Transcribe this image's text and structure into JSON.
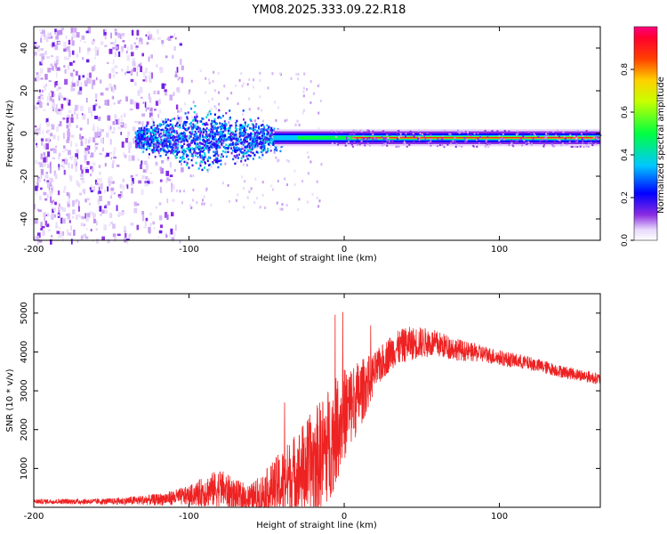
{
  "title": "YM08.2025.333.09.22.R18",
  "colors": {
    "snr_line": "#ee2222",
    "axis": "#000000",
    "background": "#ffffff"
  },
  "chart_data": [
    {
      "type": "heatmap",
      "name": "spectrogram",
      "xlabel": "Height of straight line (km)",
      "ylabel": "Frequency (Hz)",
      "xlim": [
        -200,
        165
      ],
      "ylim": [
        -50,
        50
      ],
      "xticks": [
        -200,
        -100,
        0,
        100
      ],
      "yticks": [
        -40,
        -20,
        0,
        20,
        40
      ],
      "colorbar": {
        "label": "Normalized spectral amplitude",
        "range": [
          0,
          1
        ],
        "ticks": [
          0.0,
          0.2,
          0.4,
          0.6,
          0.8
        ]
      },
      "regions": [
        {
          "description": "noise",
          "x_range": [
            -200,
            -105
          ],
          "f_range": [
            -50,
            50
          ],
          "amplitude": 0.1
        },
        {
          "description": "onset",
          "x_range": [
            -135,
            -40
          ],
          "f_range": [
            -12,
            8
          ],
          "amplitude": 0.3
        },
        {
          "description": "tone",
          "x_range": [
            -40,
            165
          ],
          "f_center": -2,
          "amplitude": 0.95
        }
      ]
    },
    {
      "type": "line",
      "name": "snr",
      "xlabel": "Height of straight line (km)",
      "ylabel": "SNR (10 * v/v)",
      "xlim": [
        -200,
        165
      ],
      "ylim": [
        0,
        5500
      ],
      "xticks": [
        -200,
        -100,
        0,
        100
      ],
      "yticks": [
        1000,
        2000,
        3000,
        4000,
        5000
      ],
      "envelope": {
        "x": [
          -200,
          -150,
          -120,
          -100,
          -90,
          -80,
          -70,
          -60,
          -50,
          -40,
          -30,
          -20,
          -10,
          0,
          10,
          20,
          30,
          40,
          50,
          60,
          70,
          80,
          90,
          100,
          120,
          140,
          165
        ],
        "base": [
          150,
          150,
          200,
          300,
          400,
          500,
          300,
          200,
          400,
          600,
          900,
          1100,
          1600,
          2400,
          2900,
          3500,
          4000,
          4200,
          4250,
          4200,
          4100,
          4000,
          3950,
          3850,
          3700,
          3500,
          3300
        ],
        "spread": [
          60,
          80,
          150,
          250,
          400,
          500,
          400,
          400,
          600,
          900,
          1100,
          1400,
          1500,
          1200,
          900,
          500,
          450,
          450,
          400,
          350,
          300,
          250,
          220,
          200,
          180,
          160,
          150
        ]
      }
    }
  ]
}
